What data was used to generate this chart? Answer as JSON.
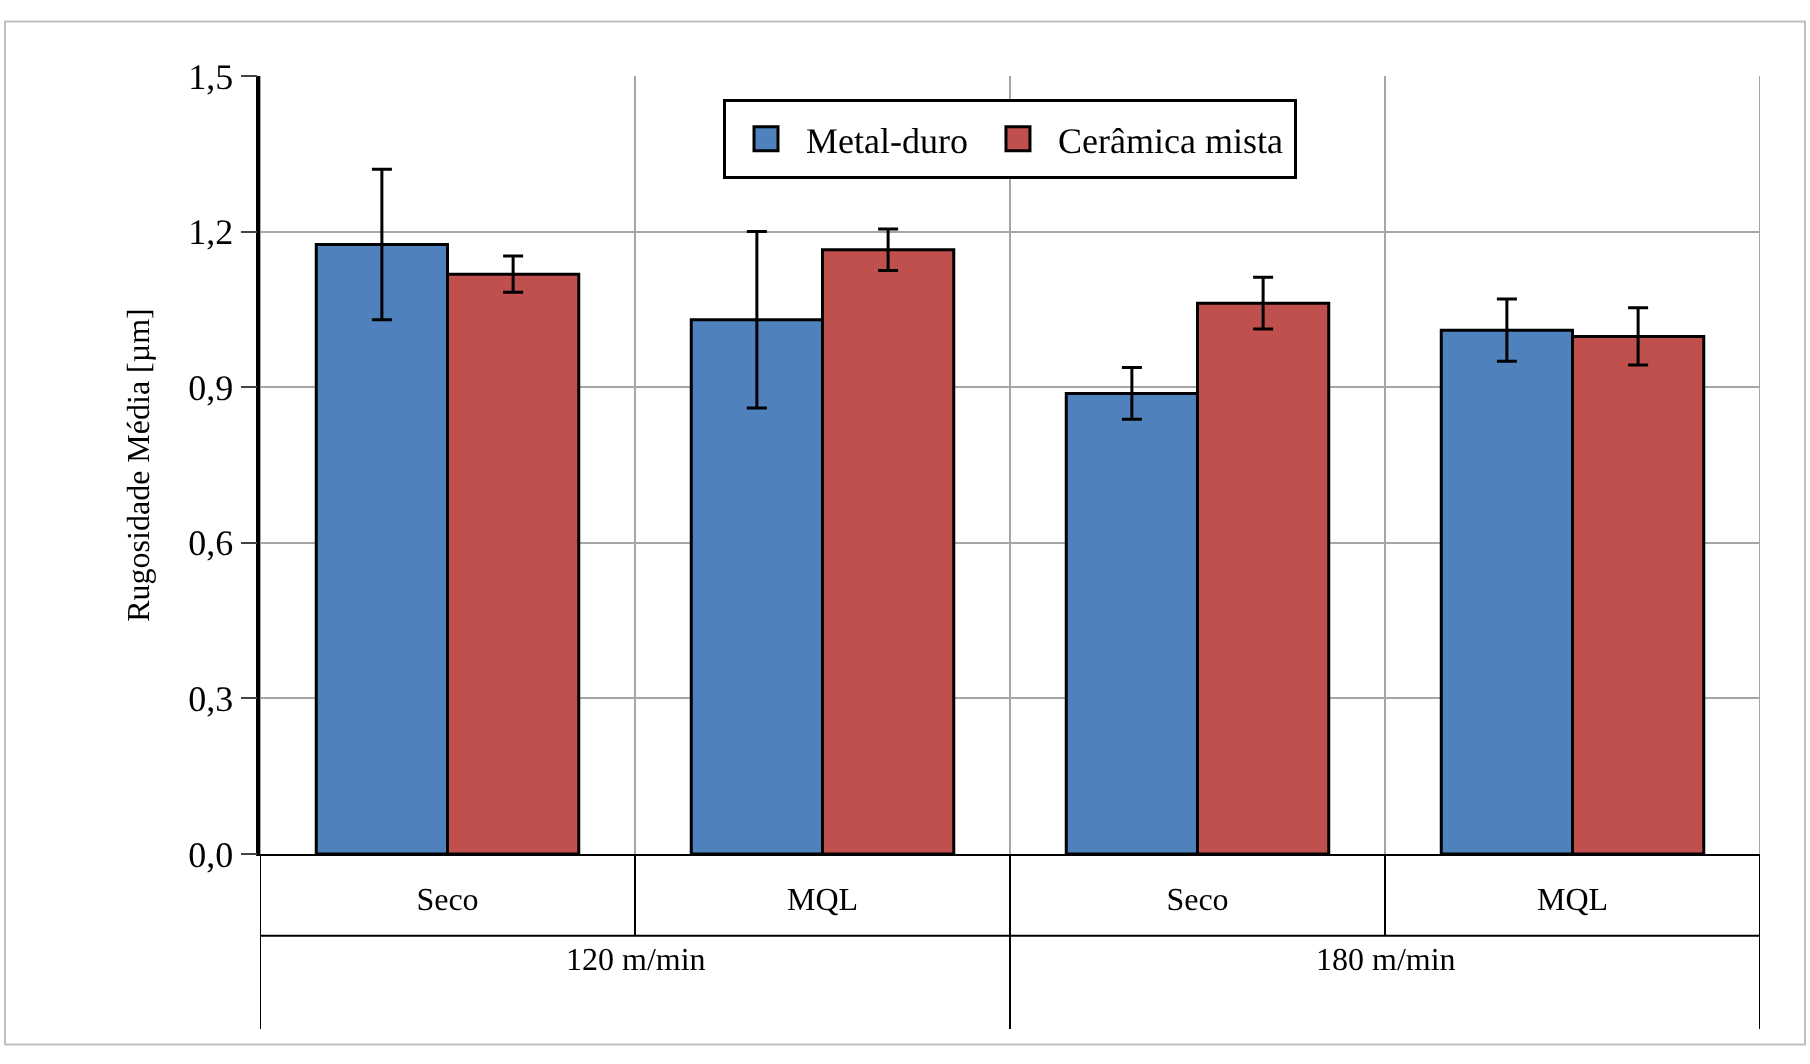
{
  "chart_data": {
    "type": "bar",
    "ylabel": "Rugosidade Média [µm]",
    "categories": [
      "Seco",
      "MQL",
      "Seco",
      "MQL"
    ],
    "series": [
      {
        "name": "Metal-duro",
        "color": "#4f81bd",
        "values": [
          1.175,
          1.03,
          0.888,
          1.01
        ],
        "errors": [
          0.145,
          0.17,
          0.05,
          0.06
        ]
      },
      {
        "name": "Cerâmica mista",
        "color": "#c0504d",
        "values": [
          1.118,
          1.165,
          1.062,
          0.998
        ],
        "errors": [
          0.035,
          0.04,
          0.05,
          0.055
        ]
      }
    ],
    "ylim": [
      0,
      1.5
    ],
    "yticks": [
      {
        "value": 0,
        "label": "0,0"
      },
      {
        "value": 0.3,
        "label": "0,3"
      },
      {
        "value": 0.6,
        "label": "0,6"
      },
      {
        "value": 0.9,
        "label": "0,9"
      },
      {
        "value": 1.2,
        "label": "1,2"
      },
      {
        "value": 1.5,
        "label": "1,5"
      }
    ],
    "annotations": [
      "120 m/min",
      "180 m/min"
    ],
    "grid": true,
    "legend": "top"
  }
}
